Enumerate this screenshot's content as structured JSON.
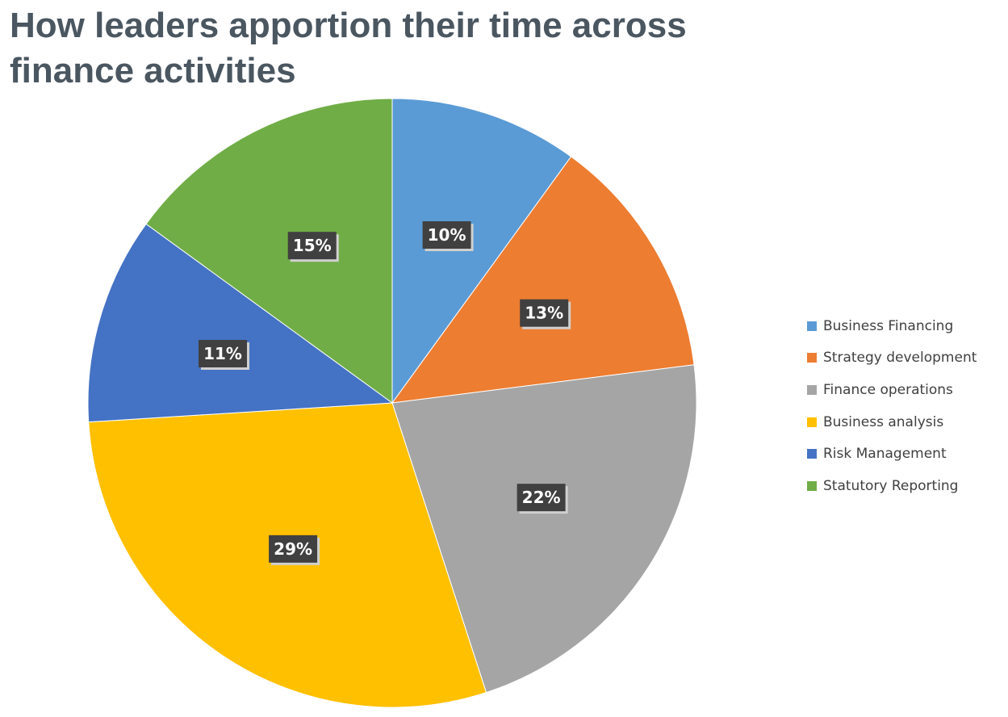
{
  "chart_data": {
    "type": "pie",
    "title": "How leaders apportion their time across finance activities",
    "categories": [
      "Business Financing",
      "Strategy development",
      "Finance operations",
      "Business analysis",
      "Risk Management",
      "Statutory Reporting"
    ],
    "values": [
      10,
      13,
      22,
      29,
      11,
      15
    ],
    "data_labels": [
      "10%",
      "13%",
      "22%",
      "29%",
      "11%",
      "15%"
    ],
    "colors": [
      "#5b9bd5",
      "#ed7d31",
      "#a5a5a5",
      "#ffc000",
      "#4472c4",
      "#70ad47"
    ],
    "start_angle": "12 o'clock",
    "direction": "clockwise",
    "legend_position": "right"
  }
}
